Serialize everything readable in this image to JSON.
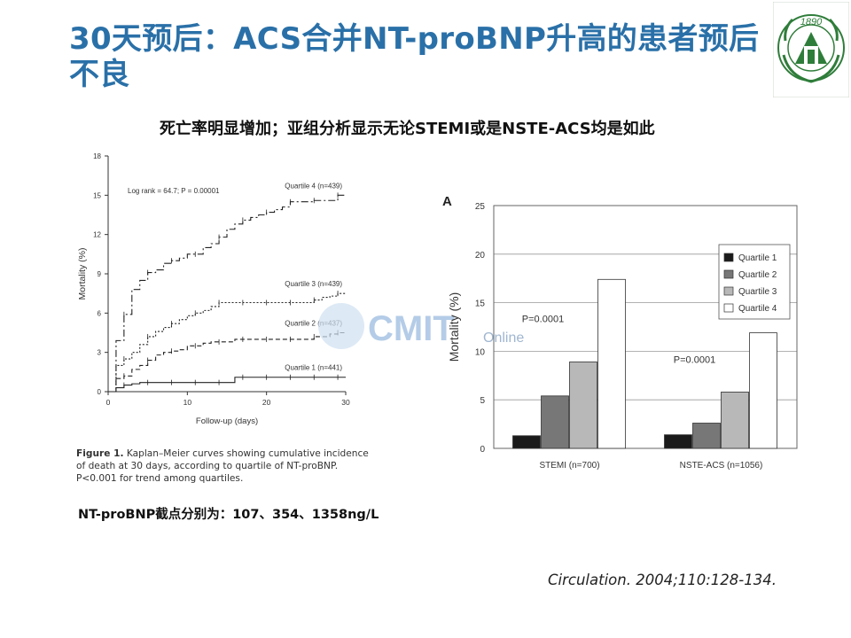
{
  "slide": {
    "title": "30天预后：ACS合并NT-proBNP升高的患者预后不良",
    "subtitle": "死亡率明显增加；亚组分析显示无论STEMI或是NSTE-ACS均是如此",
    "cutoff_note": "NT-proBNP截点分别为：107、354、1358ng/L",
    "citation": "Circulation. 2004;110:128-134.",
    "watermark": {
      "main": "CMIT",
      "sub": "Online"
    },
    "logo": {
      "year": "1890"
    }
  },
  "figure_caption": {
    "label": "Figure 1.",
    "text": "Kaplan–Meier curves showing cumulative incidence of death at 30 days, according to quartile of NT-proBNP. P<0.001 for trend among quartiles."
  },
  "chart_data": [
    {
      "type": "line",
      "step": true,
      "xlabel": "Follow-up (days)",
      "ylabel": "Mortality (%)",
      "xlim": [
        0,
        30
      ],
      "ylim": [
        0,
        18
      ],
      "xticks": [
        0,
        10,
        20,
        30
      ],
      "yticks": [
        0,
        3,
        6,
        9,
        12,
        15,
        18
      ],
      "annotation": "Log rank = 64.7; P = 0.00001",
      "grid": false,
      "series": [
        {
          "name": "Quartile 4 (n=439)",
          "style": "dash-dot",
          "x": [
            0,
            1,
            2,
            3,
            4,
            5,
            6,
            7,
            8,
            9,
            10,
            11,
            12,
            13,
            14,
            15,
            16,
            17,
            18,
            19,
            20,
            21,
            22,
            23,
            24,
            25,
            26,
            27,
            28,
            29,
            30
          ],
          "y": [
            0,
            3.9,
            5.9,
            7.8,
            8.5,
            9.1,
            9.3,
            9.8,
            10.0,
            10.2,
            10.5,
            10.5,
            11.0,
            11.3,
            11.8,
            12.4,
            12.8,
            13.1,
            13.3,
            13.5,
            13.7,
            13.9,
            14.1,
            14.5,
            14.5,
            14.5,
            14.6,
            14.6,
            14.6,
            15.0,
            15.0
          ]
        },
        {
          "name": "Quartile 3 (n=439)",
          "style": "dotted",
          "x": [
            0,
            1,
            2,
            3,
            4,
            5,
            6,
            7,
            8,
            9,
            10,
            11,
            12,
            13,
            14,
            15,
            16,
            17,
            18,
            19,
            20,
            21,
            22,
            23,
            24,
            25,
            26,
            27,
            28,
            29,
            30
          ],
          "y": [
            0,
            2.0,
            2.5,
            3.0,
            3.6,
            4.2,
            4.6,
            4.9,
            5.2,
            5.5,
            5.8,
            6.0,
            6.2,
            6.5,
            6.8,
            6.8,
            6.8,
            6.8,
            6.8,
            6.8,
            6.8,
            6.8,
            6.8,
            6.8,
            6.8,
            6.8,
            7.0,
            7.2,
            7.3,
            7.5,
            7.5
          ]
        },
        {
          "name": "Quartile 2 (n=437)",
          "style": "dashed",
          "x": [
            0,
            1,
            2,
            3,
            4,
            5,
            6,
            7,
            8,
            9,
            10,
            11,
            12,
            13,
            14,
            15,
            16,
            17,
            18,
            19,
            20,
            21,
            22,
            23,
            24,
            25,
            26,
            27,
            28,
            29,
            30
          ],
          "y": [
            0,
            1.0,
            1.2,
            1.7,
            2.0,
            2.4,
            2.8,
            3.0,
            3.1,
            3.2,
            3.5,
            3.5,
            3.7,
            3.8,
            3.8,
            3.8,
            4.0,
            4.0,
            4.0,
            4.0,
            4.0,
            4.0,
            4.0,
            4.0,
            4.0,
            4.0,
            4.2,
            4.2,
            4.4,
            4.5,
            4.5
          ]
        },
        {
          "name": "Quartile 1 (n=441)",
          "style": "solid",
          "x": [
            0,
            1,
            2,
            3,
            4,
            5,
            6,
            7,
            8,
            9,
            10,
            11,
            12,
            13,
            14,
            15,
            16,
            17,
            18,
            19,
            20,
            21,
            22,
            23,
            24,
            25,
            26,
            27,
            28,
            29,
            30
          ],
          "y": [
            0,
            0.3,
            0.5,
            0.6,
            0.7,
            0.7,
            0.7,
            0.7,
            0.7,
            0.7,
            0.7,
            0.7,
            0.7,
            0.7,
            0.7,
            0.7,
            1.1,
            1.1,
            1.1,
            1.1,
            1.1,
            1.1,
            1.1,
            1.1,
            1.1,
            1.1,
            1.1,
            1.1,
            1.1,
            1.1,
            1.1
          ]
        }
      ]
    },
    {
      "type": "bar",
      "panel_label": "A",
      "categories": [
        "STEMI (n=700)",
        "NSTE-ACS (n=1056)"
      ],
      "ylabel": "Mortality (%)",
      "ylim": [
        0,
        25
      ],
      "yticks": [
        0,
        5,
        10,
        15,
        20,
        25
      ],
      "grid": true,
      "legend": "top-left",
      "series": [
        {
          "name": "Quartile 1",
          "color": "#1a1a1a",
          "values": [
            1.3,
            1.4
          ]
        },
        {
          "name": "Quartile 2",
          "color": "#777777",
          "values": [
            5.4,
            2.6
          ]
        },
        {
          "name": "Quartile 3",
          "color": "#b8b8b8",
          "values": [
            8.9,
            5.8
          ]
        },
        {
          "name": "Quartile 4",
          "color": "#ffffff",
          "values": [
            17.4,
            11.9
          ]
        }
      ],
      "annotations": [
        "P=0.0001",
        "P=0.0001"
      ]
    }
  ]
}
